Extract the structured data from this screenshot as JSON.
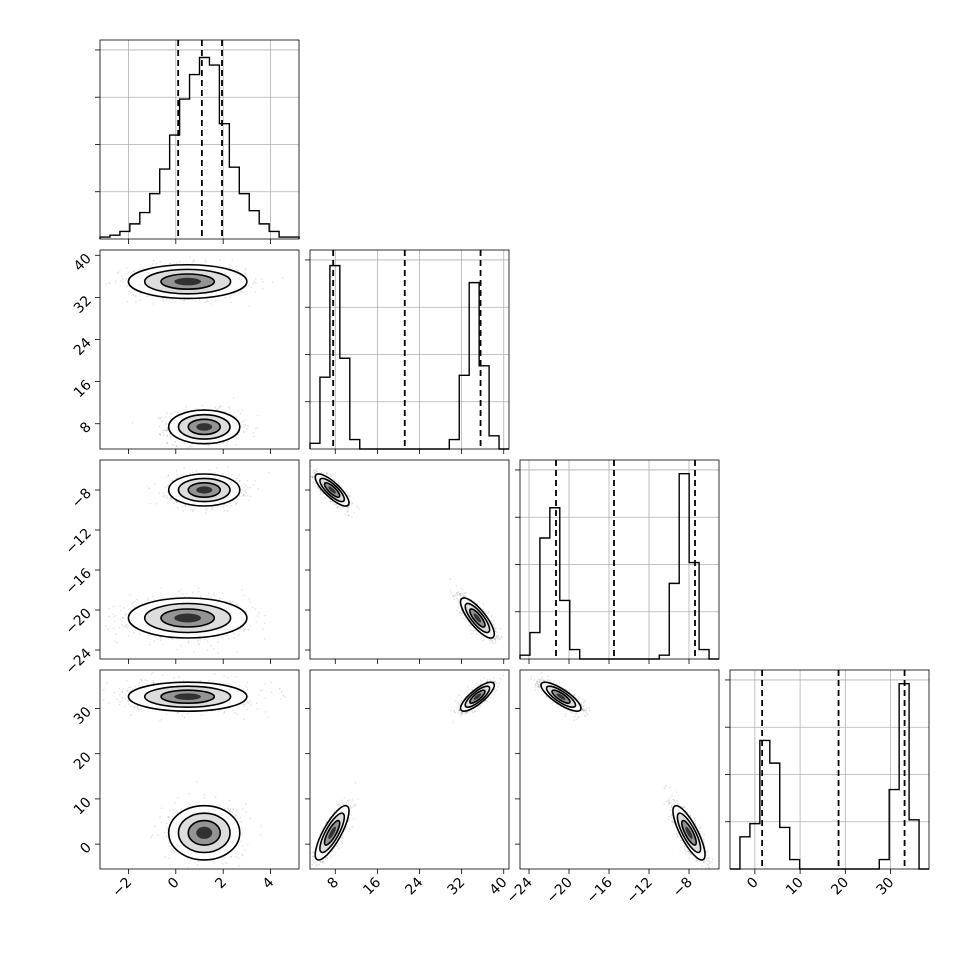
{
  "chart_data": {
    "type": "corner",
    "params": [
      {
        "ticks": [
          -2,
          0,
          2,
          4
        ],
        "range": [
          -3.2,
          5.2
        ],
        "hist_edges": [
          -3.2,
          -2.78,
          -2.36,
          -1.94,
          -1.52,
          -1.1,
          -0.68,
          -0.26,
          0.16,
          0.58,
          1.0,
          1.42,
          1.84,
          2.26,
          2.68,
          3.1,
          3.52,
          3.94,
          4.36,
          4.78,
          5.2
        ],
        "hist_counts": [
          0.01,
          0.02,
          0.04,
          0.08,
          0.14,
          0.24,
          0.37,
          0.55,
          0.74,
          0.87,
          0.96,
          0.92,
          0.61,
          0.38,
          0.24,
          0.15,
          0.08,
          0.04,
          0.01,
          0.01
        ],
        "quantiles": [
          0.1,
          1.1,
          1.95
        ],
        "hist_max": 1.0
      },
      {
        "ticks": [
          8,
          16,
          24,
          32,
          40
        ],
        "range": [
          3.2,
          41.0
        ],
        "hist_edges": [
          3.2,
          5.09,
          6.98,
          8.87,
          10.76,
          12.65,
          14.54,
          16.43,
          18.32,
          20.21,
          22.1,
          23.99,
          25.88,
          27.77,
          29.66,
          31.55,
          33.44,
          35.33,
          37.22,
          39.11,
          41.0
        ],
        "hist_counts": [
          0.03,
          0.38,
          0.97,
          0.48,
          0.05,
          0.0,
          0.0,
          0.0,
          0.0,
          0.0,
          0.0,
          0.0,
          0.0,
          0.0,
          0.05,
          0.39,
          0.88,
          0.44,
          0.07,
          0.0
        ],
        "quantiles": [
          7.6,
          21.2,
          35.6
        ],
        "hist_max": 1.0
      },
      {
        "ticks": [
          -24,
          -20,
          -16,
          -12,
          -8
        ],
        "range": [
          -24.9,
          -5.0
        ],
        "hist_edges": [
          -24.9,
          -23.905,
          -22.91,
          -21.915,
          -20.92,
          -19.925,
          -18.93,
          -17.935,
          -16.94,
          -15.945,
          -14.95,
          -13.955,
          -12.96,
          -11.965,
          -10.97,
          -9.975,
          -8.98,
          -7.985,
          -6.99,
          -5.995,
          -5.0
        ],
        "hist_counts": [
          0.02,
          0.14,
          0.64,
          0.8,
          0.31,
          0.05,
          0.0,
          0.0,
          0.0,
          0.0,
          0.0,
          0.0,
          0.0,
          0.0,
          0.02,
          0.4,
          0.98,
          0.51,
          0.05,
          0.0
        ],
        "quantiles": [
          -21.3,
          -15.5,
          -7.4
        ],
        "hist_max": 1.0
      },
      {
        "ticks": [
          0,
          10,
          20,
          30
        ],
        "range": [
          -5.5,
          38.5
        ],
        "hist_edges": [
          -5.5,
          -3.3,
          -1.1,
          1.1,
          3.3,
          5.5,
          7.7,
          9.9,
          12.1,
          14.3,
          16.5,
          18.7,
          20.9,
          23.1,
          25.3,
          27.5,
          29.7,
          31.9,
          34.1,
          36.3,
          38.5
        ],
        "hist_counts": [
          0.0,
          0.17,
          0.24,
          0.68,
          0.56,
          0.22,
          0.05,
          0.0,
          0.0,
          0.0,
          0.0,
          0.0,
          0.0,
          0.0,
          0.0,
          0.05,
          0.42,
          0.98,
          0.26,
          0.0
        ],
        "quantiles": [
          1.6,
          18.5,
          33.1
        ],
        "hist_max": 1.0
      }
    ],
    "histogram_frac_ticks": [
      0.25,
      0.5,
      0.75
    ],
    "modes": [
      {
        "mean": [
          1.2,
          7.4,
          -8.0,
          2.5
        ],
        "sd": [
          0.75,
          1.6,
          0.8,
          3.0
        ],
        "weight": 0.5
      },
      {
        "mean": [
          0.5,
          35.0,
          -20.8,
          32.6
        ],
        "sd": [
          1.25,
          1.6,
          1.0,
          1.6
        ],
        "weight": 0.5
      }
    ],
    "pair_correlation": {
      "1-2": -0.8,
      "1-3": 0.8,
      "2-3": -0.8
    }
  }
}
